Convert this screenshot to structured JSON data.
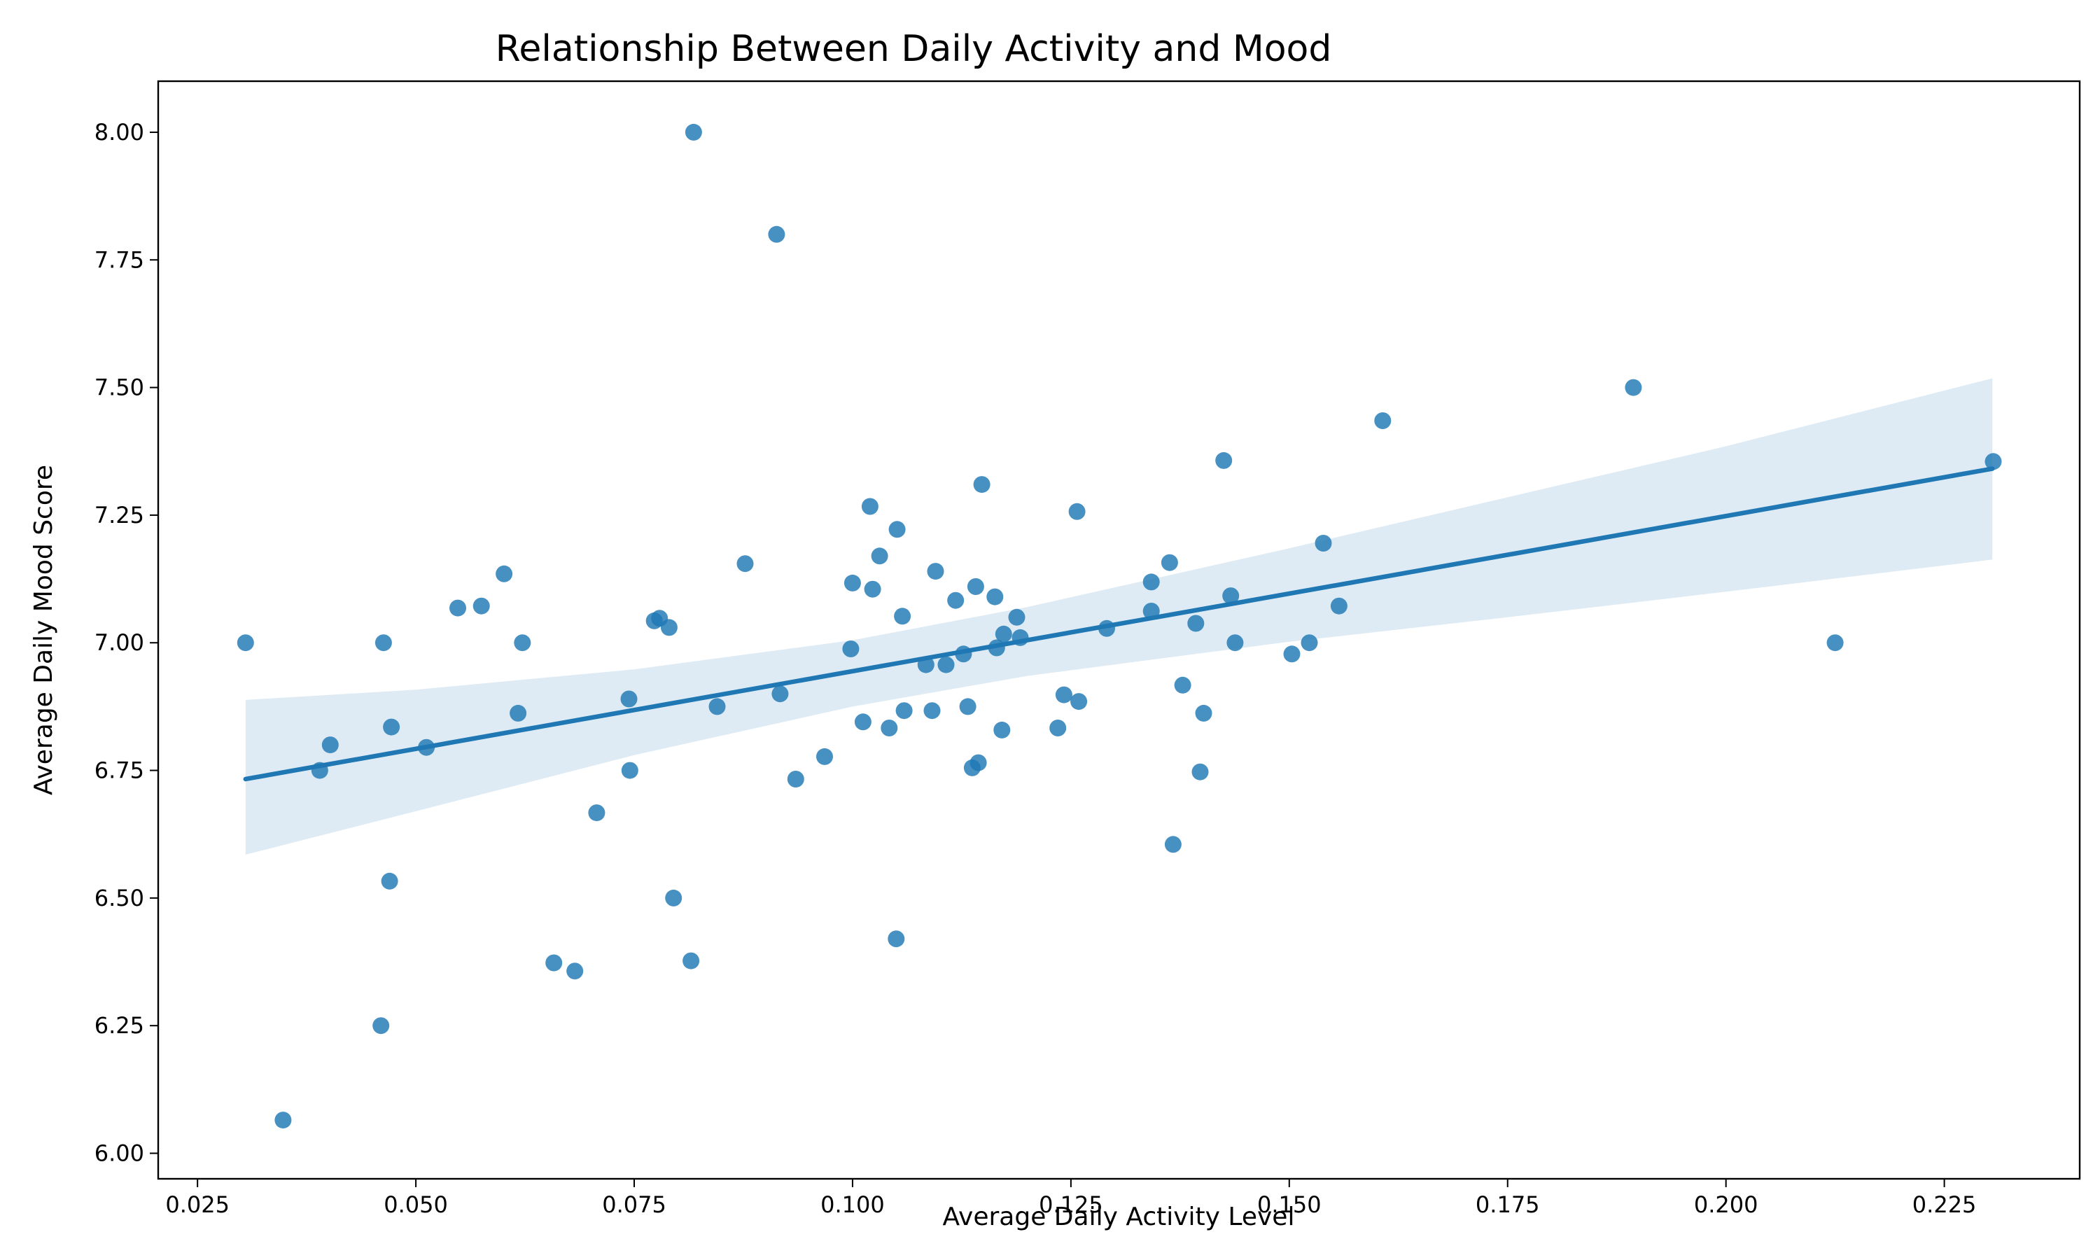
{
  "chart_data": {
    "type": "scatter",
    "title": "Relationship Between Daily Activity and Mood",
    "xlabel": "Average Daily Activity Level",
    "ylabel": "Average Daily Mood Score",
    "xlim": [
      0.0205,
      0.2405
    ],
    "ylim": [
      5.95,
      8.1
    ],
    "xticks": [
      0.025,
      0.05,
      0.075,
      0.1,
      0.125,
      0.15,
      0.175,
      0.2,
      0.225
    ],
    "xtick_labels": [
      "0.025",
      "0.050",
      "0.075",
      "0.100",
      "0.125",
      "0.150",
      "0.175",
      "0.200",
      "0.225"
    ],
    "yticks": [
      6.0,
      6.25,
      6.5,
      6.75,
      7.0,
      7.25,
      7.5,
      7.75,
      8.0
    ],
    "ytick_labels": [
      "6.00",
      "6.25",
      "6.50",
      "6.75",
      "7.00",
      "7.25",
      "7.50",
      "7.75",
      "8.00"
    ],
    "grid": false,
    "colors": {
      "points": "#1f77b4",
      "line": "#1f77b4",
      "band": "#1f77b4"
    },
    "regression": {
      "x": [
        0.0305,
        0.2305
      ],
      "y": [
        6.733,
        7.341
      ],
      "ci_x": [
        0.0305,
        0.05,
        0.075,
        0.1,
        0.12,
        0.15,
        0.175,
        0.2,
        0.2305
      ],
      "ci_upper": [
        6.888,
        6.908,
        6.948,
        7.005,
        7.07,
        7.185,
        7.285,
        7.385,
        7.518
      ],
      "ci_lower": [
        6.585,
        6.67,
        6.78,
        6.875,
        6.935,
        7.002,
        7.05,
        7.1,
        7.163
      ]
    },
    "points": [
      {
        "x": 0.0305,
        "y": 7.0
      },
      {
        "x": 0.0348,
        "y": 6.065
      },
      {
        "x": 0.039,
        "y": 6.75
      },
      {
        "x": 0.0402,
        "y": 6.8
      },
      {
        "x": 0.046,
        "y": 6.25
      },
      {
        "x": 0.0463,
        "y": 7.0
      },
      {
        "x": 0.047,
        "y": 6.533
      },
      {
        "x": 0.0472,
        "y": 6.835
      },
      {
        "x": 0.0512,
        "y": 6.795
      },
      {
        "x": 0.0548,
        "y": 7.068
      },
      {
        "x": 0.0575,
        "y": 7.072
      },
      {
        "x": 0.0601,
        "y": 7.135
      },
      {
        "x": 0.0617,
        "y": 6.862
      },
      {
        "x": 0.0622,
        "y": 7.0
      },
      {
        "x": 0.0658,
        "y": 6.373
      },
      {
        "x": 0.0682,
        "y": 6.357
      },
      {
        "x": 0.0707,
        "y": 6.667
      },
      {
        "x": 0.0744,
        "y": 6.89
      },
      {
        "x": 0.0745,
        "y": 6.75
      },
      {
        "x": 0.0773,
        "y": 7.043
      },
      {
        "x": 0.0779,
        "y": 7.048
      },
      {
        "x": 0.079,
        "y": 7.03
      },
      {
        "x": 0.0795,
        "y": 6.5
      },
      {
        "x": 0.0815,
        "y": 6.377
      },
      {
        "x": 0.0818,
        "y": 8.0
      },
      {
        "x": 0.0845,
        "y": 6.875
      },
      {
        "x": 0.0877,
        "y": 7.155
      },
      {
        "x": 0.0913,
        "y": 7.8
      },
      {
        "x": 0.0917,
        "y": 6.9
      },
      {
        "x": 0.0935,
        "y": 6.733
      },
      {
        "x": 0.0968,
        "y": 6.777
      },
      {
        "x": 0.0998,
        "y": 6.988
      },
      {
        "x": 0.1,
        "y": 7.117
      },
      {
        "x": 0.1012,
        "y": 6.845
      },
      {
        "x": 0.102,
        "y": 7.267
      },
      {
        "x": 0.1023,
        "y": 7.105
      },
      {
        "x": 0.1031,
        "y": 7.17
      },
      {
        "x": 0.1042,
        "y": 6.833
      },
      {
        "x": 0.105,
        "y": 6.42
      },
      {
        "x": 0.1051,
        "y": 7.222
      },
      {
        "x": 0.1057,
        "y": 7.052
      },
      {
        "x": 0.1059,
        "y": 6.867
      },
      {
        "x": 0.1084,
        "y": 6.957
      },
      {
        "x": 0.1091,
        "y": 6.867
      },
      {
        "x": 0.1095,
        "y": 7.14
      },
      {
        "x": 0.1107,
        "y": 6.957
      },
      {
        "x": 0.1118,
        "y": 7.083
      },
      {
        "x": 0.1127,
        "y": 6.978
      },
      {
        "x": 0.1132,
        "y": 6.875
      },
      {
        "x": 0.1137,
        "y": 6.755
      },
      {
        "x": 0.1141,
        "y": 7.11
      },
      {
        "x": 0.1144,
        "y": 6.765
      },
      {
        "x": 0.1148,
        "y": 7.31
      },
      {
        "x": 0.1163,
        "y": 7.09
      },
      {
        "x": 0.1165,
        "y": 6.99
      },
      {
        "x": 0.1171,
        "y": 6.829
      },
      {
        "x": 0.1173,
        "y": 7.017
      },
      {
        "x": 0.1188,
        "y": 7.05
      },
      {
        "x": 0.1192,
        "y": 7.01
      },
      {
        "x": 0.1235,
        "y": 6.833
      },
      {
        "x": 0.1242,
        "y": 6.898
      },
      {
        "x": 0.1257,
        "y": 7.257
      },
      {
        "x": 0.1259,
        "y": 6.885
      },
      {
        "x": 0.1291,
        "y": 7.028
      },
      {
        "x": 0.1342,
        "y": 7.119
      },
      {
        "x": 0.1342,
        "y": 7.062
      },
      {
        "x": 0.1363,
        "y": 7.157
      },
      {
        "x": 0.1367,
        "y": 6.605
      },
      {
        "x": 0.1378,
        "y": 6.917
      },
      {
        "x": 0.1393,
        "y": 7.038
      },
      {
        "x": 0.1398,
        "y": 6.747
      },
      {
        "x": 0.1402,
        "y": 6.862
      },
      {
        "x": 0.1425,
        "y": 7.357
      },
      {
        "x": 0.1433,
        "y": 7.092
      },
      {
        "x": 0.1438,
        "y": 7.0
      },
      {
        "x": 0.1503,
        "y": 6.978
      },
      {
        "x": 0.1523,
        "y": 7.0
      },
      {
        "x": 0.1539,
        "y": 7.195
      },
      {
        "x": 0.1557,
        "y": 7.072
      },
      {
        "x": 0.1607,
        "y": 7.435
      },
      {
        "x": 0.1894,
        "y": 7.5
      },
      {
        "x": 0.2125,
        "y": 7.0
      },
      {
        "x": 0.2306,
        "y": 7.355
      }
    ]
  }
}
